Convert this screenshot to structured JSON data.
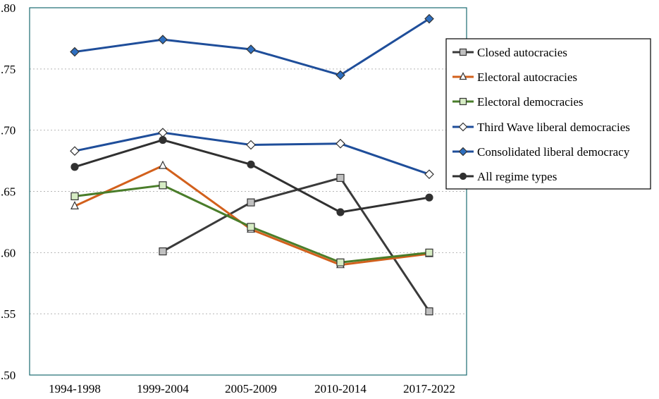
{
  "chart_data": {
    "type": "line",
    "title": "",
    "xlabel": "",
    "ylabel": "",
    "categories": [
      "1994-1998",
      "1999-2004",
      "2005-2009",
      "2010-2014",
      "2017-2022"
    ],
    "y_ticks": [
      0.5,
      0.55,
      0.6,
      0.65,
      0.7,
      0.75,
      0.8
    ],
    "y_tick_labels": [
      ".50",
      ".55",
      ".60",
      ".65",
      ".70",
      ".75",
      ".80"
    ],
    "ylim": [
      0.5,
      0.8
    ],
    "grid": "horizontal dotted",
    "legend_position": "right",
    "series": [
      {
        "name": "Closed autocracies",
        "color": "#3a3a3a",
        "marker": "square",
        "marker_fill": "#c0c0c0",
        "values": [
          null,
          0.601,
          0.641,
          0.661,
          0.552
        ]
      },
      {
        "name": "Electoral autocracies",
        "color": "#d2601c",
        "marker": "triangle",
        "marker_fill": "#ffffff",
        "values": [
          0.638,
          0.671,
          0.619,
          0.59,
          0.599
        ]
      },
      {
        "name": "Electoral democracies",
        "color": "#4a7d2a",
        "marker": "square",
        "marker_fill": "#d6ecc4",
        "values": [
          0.646,
          0.655,
          0.621,
          0.592,
          0.6
        ]
      },
      {
        "name": "Third Wave liberal democracies",
        "color": "#1f4e9a",
        "marker": "diamond",
        "marker_fill": "#ffffff",
        "values": [
          0.683,
          0.698,
          0.688,
          0.689,
          0.664
        ]
      },
      {
        "name": "Consolidated liberal democracy",
        "color": "#1f4e9a",
        "marker": "diamond",
        "marker_fill": "#2e6fc0",
        "values": [
          0.764,
          0.774,
          0.766,
          0.745,
          0.791
        ]
      },
      {
        "name": "All regime types",
        "color": "#303030",
        "marker": "circle",
        "marker_fill": "#303030",
        "values": [
          0.67,
          0.692,
          0.672,
          0.633,
          0.645
        ]
      }
    ]
  }
}
